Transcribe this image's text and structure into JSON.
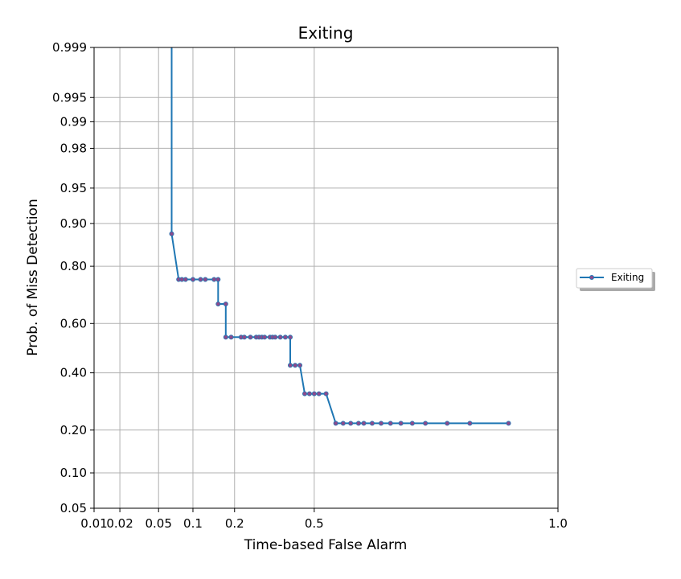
{
  "chart_data": {
    "type": "line",
    "title": "Exiting",
    "xlabel": "Time-based False Alarm",
    "ylabel": "Prob. of Miss Detection",
    "x_scale": "probit",
    "y_scale": "probit",
    "xlim": [
      0.01,
      1.0
    ],
    "ylim": [
      0.05,
      0.999
    ],
    "x_ticks": [
      0.01,
      0.02,
      0.05,
      0.1,
      0.2,
      0.5,
      1.0
    ],
    "x_tick_labels": [
      "0.01",
      "0.02",
      "0.05",
      "0.1",
      "0.2",
      "0.5",
      "1.0"
    ],
    "y_ticks": [
      0.05,
      0.1,
      0.2,
      0.4,
      0.6,
      0.8,
      0.9,
      0.95,
      0.98,
      0.99,
      0.995,
      0.999
    ],
    "y_tick_labels": [
      "0.05",
      "0.10",
      "0.20",
      "0.40",
      "0.60",
      "0.80",
      "0.90",
      "0.95",
      "0.98",
      "0.99",
      "0.995",
      "0.999"
    ],
    "grid": true,
    "legend_position": "outside right",
    "series": [
      {
        "name": "Exiting",
        "color": "#1f77b4",
        "marker_color": "#8c4a8c",
        "x": [
          0.066,
          0.066,
          0.076,
          0.081,
          0.087,
          0.1,
          0.115,
          0.125,
          0.145,
          0.155,
          0.155,
          0.175,
          0.175,
          0.19,
          0.22,
          0.23,
          0.25,
          0.27,
          0.28,
          0.29,
          0.3,
          0.32,
          0.33,
          0.34,
          0.36,
          0.38,
          0.4,
          0.4,
          0.42,
          0.44,
          0.44,
          0.46,
          0.48,
          0.5,
          0.52,
          0.55,
          0.55,
          0.59,
          0.62,
          0.65,
          0.68,
          0.7,
          0.73,
          0.76,
          0.79,
          0.82,
          0.85,
          0.88,
          0.92,
          0.95,
          0.98
        ],
        "y": [
          0.999,
          0.88,
          0.76,
          0.76,
          0.76,
          0.76,
          0.76,
          0.76,
          0.76,
          0.76,
          0.675,
          0.675,
          0.545,
          0.545,
          0.545,
          0.545,
          0.545,
          0.545,
          0.545,
          0.545,
          0.545,
          0.545,
          0.545,
          0.545,
          0.545,
          0.545,
          0.545,
          0.43,
          0.43,
          0.43,
          0.43,
          0.32,
          0.32,
          0.32,
          0.32,
          0.32,
          0.32,
          0.22,
          0.22,
          0.22,
          0.22,
          0.22,
          0.22,
          0.22,
          0.22,
          0.22,
          0.22,
          0.22,
          0.22,
          0.22,
          0.22
        ],
        "marker_points": [
          [
            0.066,
            0.88
          ],
          [
            0.076,
            0.76
          ],
          [
            0.081,
            0.76
          ],
          [
            0.087,
            0.76
          ],
          [
            0.1,
            0.76
          ],
          [
            0.115,
            0.76
          ],
          [
            0.125,
            0.76
          ],
          [
            0.145,
            0.76
          ],
          [
            0.155,
            0.76
          ],
          [
            0.155,
            0.675
          ],
          [
            0.175,
            0.675
          ],
          [
            0.175,
            0.545
          ],
          [
            0.19,
            0.545
          ],
          [
            0.22,
            0.545
          ],
          [
            0.23,
            0.545
          ],
          [
            0.25,
            0.545
          ],
          [
            0.27,
            0.545
          ],
          [
            0.28,
            0.545
          ],
          [
            0.29,
            0.545
          ],
          [
            0.3,
            0.545
          ],
          [
            0.32,
            0.545
          ],
          [
            0.33,
            0.545
          ],
          [
            0.34,
            0.545
          ],
          [
            0.36,
            0.545
          ],
          [
            0.38,
            0.545
          ],
          [
            0.4,
            0.545
          ],
          [
            0.4,
            0.43
          ],
          [
            0.42,
            0.43
          ],
          [
            0.44,
            0.43
          ],
          [
            0.46,
            0.32
          ],
          [
            0.48,
            0.32
          ],
          [
            0.5,
            0.32
          ],
          [
            0.52,
            0.32
          ],
          [
            0.55,
            0.32
          ],
          [
            0.59,
            0.22
          ],
          [
            0.62,
            0.22
          ],
          [
            0.65,
            0.22
          ],
          [
            0.68,
            0.22
          ],
          [
            0.7,
            0.22
          ],
          [
            0.73,
            0.22
          ],
          [
            0.76,
            0.22
          ],
          [
            0.79,
            0.22
          ],
          [
            0.82,
            0.22
          ],
          [
            0.85,
            0.22
          ],
          [
            0.88,
            0.22
          ],
          [
            0.92,
            0.22
          ],
          [
            0.95,
            0.22
          ],
          [
            0.98,
            0.22
          ]
        ]
      }
    ]
  }
}
